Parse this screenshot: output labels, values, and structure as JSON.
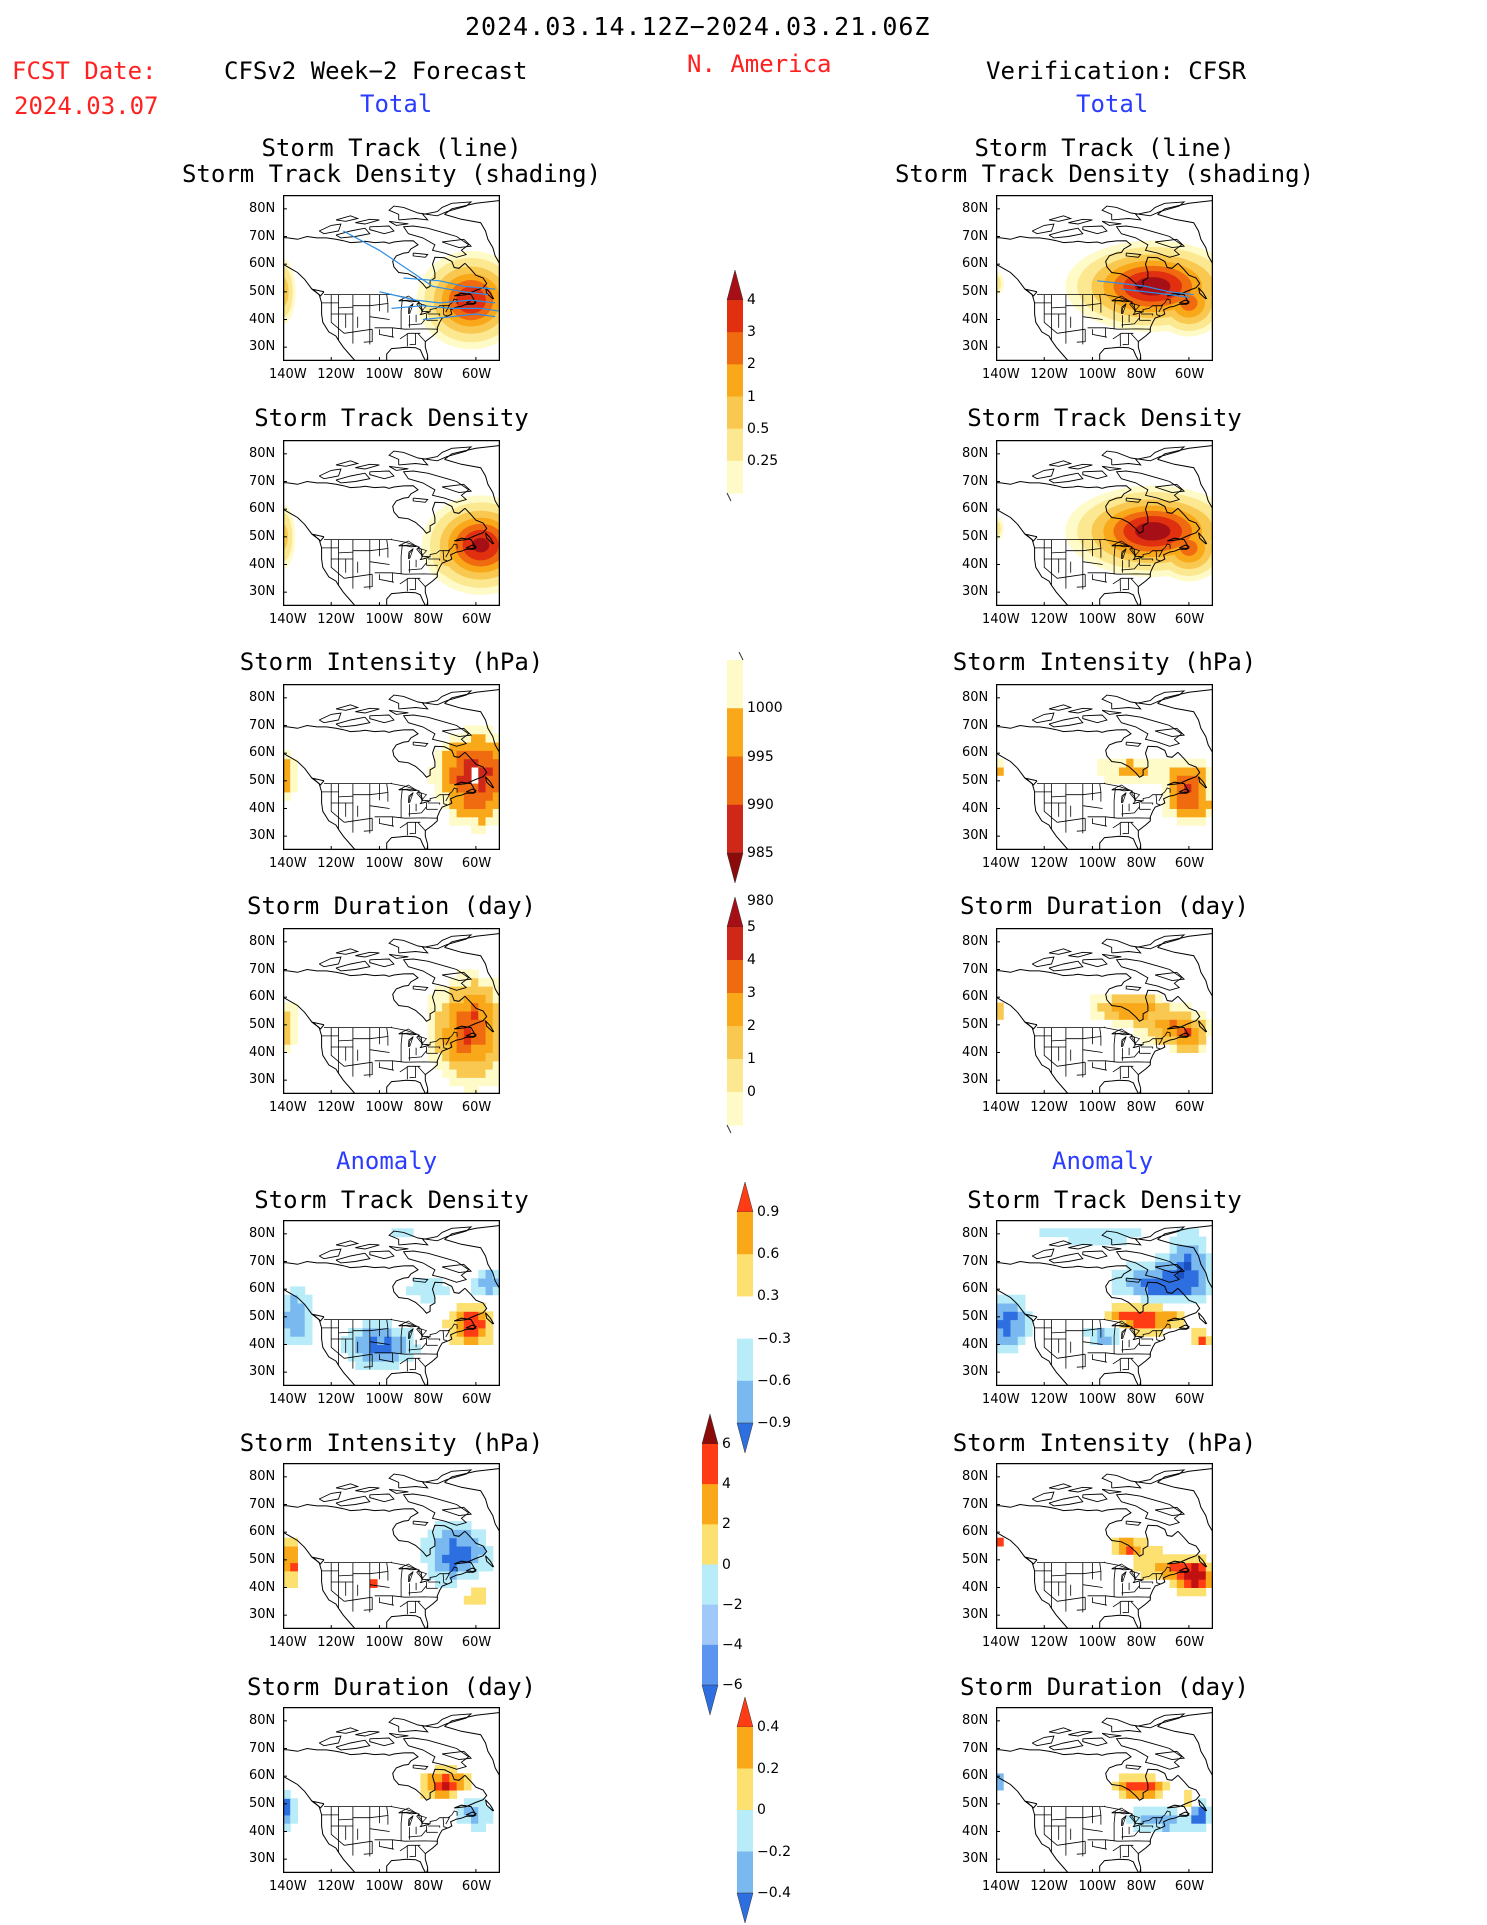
{
  "header": {
    "period": "2024.03.14.12Z−2024.03.21.06Z",
    "region": "N. America",
    "fcst_label": "FCST Date:",
    "fcst_date": "2024.03.07",
    "left_title": "CFSv2 Week−2 Forecast",
    "right_title": "Verification: CFSR",
    "total": "Total",
    "anomaly": "Anomaly"
  },
  "axes": {
    "lat_labels": [
      "80N",
      "70N",
      "60N",
      "50N",
      "40N",
      "30N"
    ],
    "lon_labels": [
      "140W",
      "120W",
      "100W",
      "80W",
      "60W"
    ]
  },
  "panels": {
    "left": [
      {
        "title_lines": [
          "Storm Track (line)",
          "Storm Track Density (shading)"
        ],
        "field": "density_track"
      },
      {
        "title_lines": [
          "Storm Track Density"
        ],
        "field": "density"
      },
      {
        "title_lines": [
          "Storm Intensity (hPa)"
        ],
        "field": "intensity"
      },
      {
        "title_lines": [
          "Storm Duration (day)"
        ],
        "field": "duration"
      },
      {
        "title_lines": [
          "Storm Track Density"
        ],
        "field": "anom_density"
      },
      {
        "title_lines": [
          "Storm Intensity (hPa)"
        ],
        "field": "anom_intensity"
      },
      {
        "title_lines": [
          "Storm Duration (day)"
        ],
        "field": "anom_duration"
      }
    ],
    "right": [
      {
        "title_lines": [
          "Storm Track (line)",
          "Storm Track Density (shading)"
        ],
        "field": "density_track"
      },
      {
        "title_lines": [
          "Storm Track Density"
        ],
        "field": "density"
      },
      {
        "title_lines": [
          "Storm Intensity (hPa)"
        ],
        "field": "intensity"
      },
      {
        "title_lines": [
          "Storm Duration (day)"
        ],
        "field": "duration"
      },
      {
        "title_lines": [
          "Storm Track Density"
        ],
        "field": "anom_density"
      },
      {
        "title_lines": [
          "Storm Intensity (hPa)"
        ],
        "field": "anom_intensity"
      },
      {
        "title_lines": [
          "Storm Duration (day)"
        ],
        "field": "anom_duration"
      }
    ]
  },
  "colorbars": [
    {
      "name": "density",
      "labels": [
        "4",
        "3",
        "2",
        "1",
        "0.5",
        "0.25"
      ],
      "colors": [
        "#a50f15",
        "#e03010",
        "#f06a10",
        "#f8a818",
        "#f8c850",
        "#fce890",
        "#fffbc8"
      ]
    },
    {
      "name": "intensity",
      "labels": [
        "1000",
        "995",
        "990",
        "985",
        "980"
      ],
      "colors": [
        "#fffbc8",
        "#f8a818",
        "#f06a10",
        "#d02818",
        "#8b0a0a"
      ]
    },
    {
      "name": "duration",
      "labels": [
        "5",
        "4",
        "3",
        "2",
        "1",
        "0"
      ],
      "colors": [
        "#a50f15",
        "#d02818",
        "#f06a10",
        "#f8a818",
        "#f8c850",
        "#fce890",
        "#fffbc8"
      ]
    },
    {
      "name": "anom_density",
      "labels": [
        "0.9",
        "0.6",
        "0.3",
        "−0.3",
        "−0.6",
        "−0.9"
      ],
      "colors": [
        "#ff3c14",
        "#f8a818",
        "#fce070",
        "#ffffff",
        "#b8ecf8",
        "#7ab8f0",
        "#2d6fe0"
      ]
    },
    {
      "name": "anom_intensity",
      "labels": [
        "6",
        "4",
        "2",
        "0",
        "−2",
        "−4",
        "−6"
      ],
      "colors": [
        "#8b0a0a",
        "#ff3c14",
        "#f8a818",
        "#fce070",
        "#b8ecf8",
        "#a0c8f8",
        "#5a96f0",
        "#2d6fe0"
      ]
    },
    {
      "name": "anom_duration",
      "labels": [
        "0.4",
        "0.2",
        "0",
        "−0.2",
        "−0.4"
      ],
      "colors": [
        "#ff3c14",
        "#f8a818",
        "#fce070",
        "#b8ecf8",
        "#7ab8f0",
        "#2d6fe0"
      ]
    }
  ],
  "colors": {
    "red_text": "#ff2020",
    "blue_text": "#2a3cff"
  }
}
